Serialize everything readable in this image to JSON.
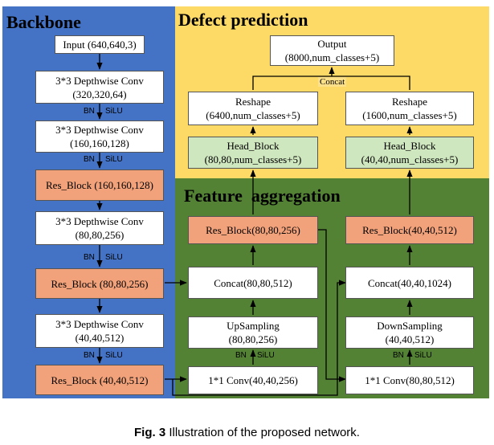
{
  "panels": {
    "backbone": "Backbone",
    "prediction": "Defect prediction",
    "aggregation": "Feature  aggregation"
  },
  "backbone": {
    "input": [
      "Input (640,640,3)"
    ],
    "conv1": [
      "3*3 Depthwise Conv",
      "(320,320,64)"
    ],
    "conv2": [
      "3*3 Depthwise Conv",
      "(160,160,128)"
    ],
    "res1": [
      "Res_Block (160,160,128)"
    ],
    "conv3": [
      "3*3 Depthwise Conv",
      "(80,80,256)"
    ],
    "res2": [
      "Res_Block (80,80,256)"
    ],
    "conv4": [
      "3*3 Depthwise Conv",
      "(40,40,512)"
    ],
    "res3": [
      "Res_Block (40,40,512)"
    ]
  },
  "prediction": {
    "output": [
      "Output",
      "(8000,num_classes+5)"
    ],
    "concat_label": "Concat",
    "reshape_left": [
      "Reshape",
      "(6400,num_classes+5)"
    ],
    "reshape_right": [
      "Reshape",
      "(1600,num_classes+5)"
    ],
    "head_left": [
      "Head_Block",
      "(80,80,num_classes+5)"
    ],
    "head_right": [
      "Head_Block",
      "(40,40,num_classes+5)"
    ]
  },
  "aggregation": {
    "res_left": [
      "Res_Block(80,80,256)"
    ],
    "res_right": [
      "Res_Block(40,40,512)"
    ],
    "concat_left": [
      "Concat(80,80,512)"
    ],
    "concat_right": [
      "Concat(40,40,1024)"
    ],
    "upsampling": [
      "UpSampling",
      "(80,80,256)"
    ],
    "downsampling": [
      "DownSampling",
      "(40,40,512)"
    ],
    "conv_left": [
      "1*1 Conv(40,40,256)"
    ],
    "conv_right": [
      "1*1 Conv(80,80,512)"
    ]
  },
  "edge_labels": {
    "bn": "BN",
    "silu": "SiLU"
  },
  "colors": {
    "backbone_bg": "#4472c4",
    "prediction_bg": "#fdd966",
    "aggregation_bg": "#548235",
    "res_block": "#f2a27a",
    "head_block": "#cfe7bf"
  },
  "caption": {
    "label": "Fig. 3",
    "text": " Illustration of the proposed network."
  }
}
